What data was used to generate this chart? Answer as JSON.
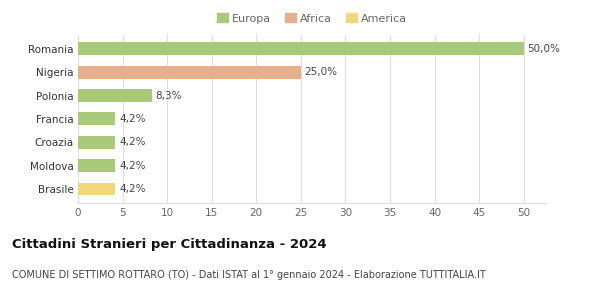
{
  "categories": [
    "Brasile",
    "Moldova",
    "Croazia",
    "Francia",
    "Polonia",
    "Nigeria",
    "Romania"
  ],
  "values": [
    4.2,
    4.2,
    4.2,
    4.2,
    8.3,
    25.0,
    50.0
  ],
  "bar_colors": [
    "#f0d87a",
    "#a8c87a",
    "#a8c87a",
    "#a8c87a",
    "#a8c87a",
    "#e8b08a",
    "#a8c87a"
  ],
  "labels": [
    "4,2%",
    "4,2%",
    "4,2%",
    "4,2%",
    "8,3%",
    "25,0%",
    "50,0%"
  ],
  "xlim": [
    0,
    52.5
  ],
  "xticks": [
    0,
    5,
    10,
    15,
    20,
    25,
    30,
    35,
    40,
    45,
    50
  ],
  "legend": [
    {
      "label": "Europa",
      "color": "#a8c87a"
    },
    {
      "label": "Africa",
      "color": "#e8b08a"
    },
    {
      "label": "America",
      "color": "#f0d87a"
    }
  ],
  "title": "Cittadini Stranieri per Cittadinanza - 2024",
  "subtitle": "COMUNE DI SETTIMO ROTTARO (TO) - Dati ISTAT al 1° gennaio 2024 - Elaborazione TUTTITALIA.IT",
  "title_fontsize": 9.5,
  "subtitle_fontsize": 7,
  "label_fontsize": 7.5,
  "tick_fontsize": 7.5,
  "legend_fontsize": 8,
  "bg_color": "#ffffff",
  "grid_color": "#dddddd"
}
